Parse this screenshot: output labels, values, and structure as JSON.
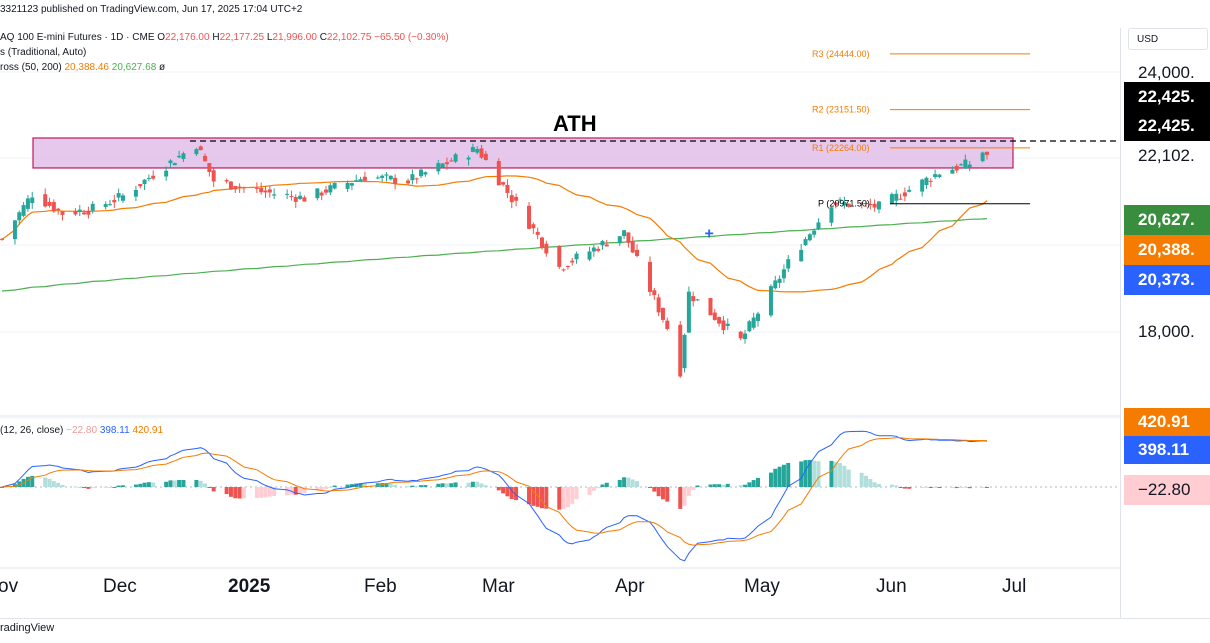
{
  "header": {
    "publisher_line": "3321123 published on TradingView.com, Jun 17, 2025 17:04 UTC+2",
    "symbol_line_prefix": "AQ 100 E-mini Futures · 1D · CME",
    "ohlc": {
      "o_label": "O",
      "o": "22,176.00",
      "h_label": "H",
      "h": "22,177.25",
      "l_label": "L",
      "l": "21,996.00",
      "c_label": "C",
      "c": "22,102.75",
      "change": "−65.50 (−0.30%)"
    },
    "pivots_line": "s (Traditional, Auto)",
    "cross_line_prefix": "ross (50, 200)",
    "cross_sma50": "20,388.46",
    "cross_sma200": "20,627.68",
    "cross_suffix": "ø"
  },
  "annotations": {
    "ath": "ATH",
    "pivot_labels": [
      "R3 (24444.00)",
      "R2 (23151.50)",
      "R1 (22264.00)",
      "P (20971.50)"
    ]
  },
  "price_scale": {
    "currency": "USD",
    "labels": [
      "24,000.",
      "18,000."
    ],
    "tags": [
      {
        "text": "22,425.",
        "color": "#000000"
      },
      {
        "text": "22,425.",
        "color": "#000000"
      },
      {
        "text": "22,102.",
        "color": "#ffffff"
      },
      {
        "text": "20,627.",
        "color": "#388e3c"
      },
      {
        "text": "20,388.",
        "color": "#f57c00"
      },
      {
        "text": "20,373.",
        "color": "#2962ff"
      }
    ]
  },
  "macd": {
    "label": "(12, 26, close)",
    "hist_value": "−22.80",
    "macd_value": "398.11",
    "signal_value": "420.91",
    "tags": [
      {
        "text": "420.91",
        "color": "#f57c00"
      },
      {
        "text": "398.11",
        "color": "#2962ff"
      },
      {
        "text": "−22.80",
        "color": "#ffcdd2"
      }
    ]
  },
  "time_axis": {
    "labels": [
      "ov",
      "Dec",
      "2025",
      "Feb",
      "Mar",
      "Apr",
      "May",
      "Jun",
      "Jul"
    ]
  },
  "footer": {
    "brand": "radingView"
  },
  "colors": {
    "up": "#26a69a",
    "down": "#ef5350",
    "sma50": "#f57c00",
    "sma200": "#4caf50",
    "macd": "#2962ff",
    "signal": "#f57c00",
    "ath_box": "#e1bee7",
    "ath_border": "#c2185b"
  },
  "chart_data": {
    "type": "candlestick",
    "instrument": "NASDAQ 100 E-mini Futures",
    "timeframe": "1D",
    "x_months": [
      "Nov",
      "Dec",
      "2025",
      "Feb",
      "Mar",
      "Apr",
      "May",
      "Jun",
      "Jul"
    ],
    "ylim": [
      16000,
      25000
    ],
    "pivots": {
      "R3": 24444.0,
      "R2": 23151.5,
      "R1": 22264.0,
      "P": 20971.5
    },
    "ath_zone": [
      21800,
      22425
    ],
    "last": {
      "open": 22176.0,
      "high": 22177.25,
      "low": 21996.0,
      "close": 22102.75
    },
    "sma50_last": 20388.46,
    "sma200_last": 20627.68,
    "close_path": [
      {
        "d": "2024-11-01",
        "v": 20150
      },
      {
        "d": "2024-11-08",
        "v": 21200
      },
      {
        "d": "2024-11-15",
        "v": 20750
      },
      {
        "d": "2024-11-22",
        "v": 20850
      },
      {
        "d": "2024-11-29",
        "v": 21150
      },
      {
        "d": "2024-12-06",
        "v": 21650
      },
      {
        "d": "2024-12-16",
        "v": 22350
      },
      {
        "d": "2024-12-20",
        "v": 21500
      },
      {
        "d": "2024-12-31",
        "v": 21250
      },
      {
        "d": "2025-01-10",
        "v": 21100
      },
      {
        "d": "2025-01-24",
        "v": 21600
      },
      {
        "d": "2025-02-03",
        "v": 21500
      },
      {
        "d": "2025-02-19",
        "v": 22250
      },
      {
        "d": "2025-02-28",
        "v": 20950
      },
      {
        "d": "2025-03-10",
        "v": 19500
      },
      {
        "d": "2025-03-25",
        "v": 20300
      },
      {
        "d": "2025-04-04",
        "v": 18100
      },
      {
        "d": "2025-04-07",
        "v": 17100
      },
      {
        "d": "2025-04-09",
        "v": 18900
      },
      {
        "d": "2025-04-21",
        "v": 17800
      },
      {
        "d": "2025-05-02",
        "v": 19600
      },
      {
        "d": "2025-05-12",
        "v": 21000
      },
      {
        "d": "2025-05-23",
        "v": 20900
      },
      {
        "d": "2025-06-06",
        "v": 21700
      },
      {
        "d": "2025-06-13",
        "v": 21900
      },
      {
        "d": "2025-06-16",
        "v": 22176
      },
      {
        "d": "2025-06-17",
        "v": 22102.75
      }
    ]
  }
}
